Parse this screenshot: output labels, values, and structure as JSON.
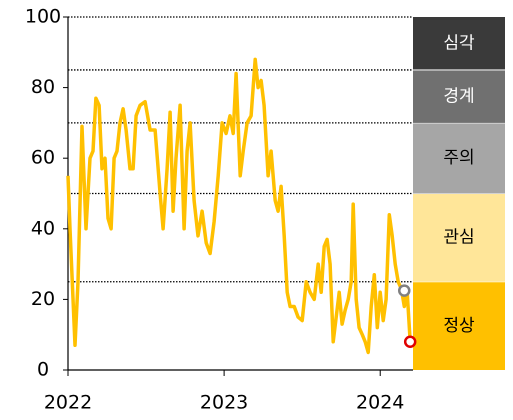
{
  "chart_data": {
    "type": "line",
    "x": [
      2022.0,
      2022.013,
      2022.045,
      2022.064,
      2022.09,
      2022.115,
      2022.141,
      2022.16,
      2022.179,
      2022.199,
      2022.218,
      2022.237,
      2022.256,
      2022.276,
      2022.295,
      2022.314,
      2022.333,
      2022.353,
      2022.372,
      2022.397,
      2022.417,
      2022.436,
      2022.462,
      2022.494,
      2022.526,
      2022.558,
      2022.59,
      2022.609,
      2022.635,
      2022.654,
      2022.673,
      2022.692,
      2022.718,
      2022.744,
      2022.763,
      2022.782,
      2022.808,
      2022.833,
      2022.859,
      2022.885,
      2022.91,
      2022.936,
      2022.962,
      2022.987,
      2023.013,
      2023.038,
      2023.058,
      2023.077,
      2023.103,
      2023.122,
      2023.147,
      2023.173,
      2023.199,
      2023.218,
      2023.237,
      2023.256,
      2023.282,
      2023.301,
      2023.327,
      2023.346,
      2023.365,
      2023.385,
      2023.404,
      2023.423,
      2023.449,
      2023.474,
      2023.5,
      2023.526,
      2023.551,
      2023.577,
      2023.603,
      2023.622,
      2023.641,
      2023.66,
      2023.679,
      2023.699,
      2023.718,
      2023.737,
      2023.756,
      2023.776,
      2023.795,
      2023.814,
      2023.827,
      2023.846,
      2023.865,
      2023.885,
      2023.904,
      2023.923,
      2023.942,
      2023.962,
      2023.981,
      2024.0,
      2024.019,
      2024.038,
      2024.058,
      2024.077,
      2024.096,
      2024.115,
      2024.135,
      2024.154,
      2024.173,
      2024.192
    ],
    "series": [
      {
        "color": "#ffc000",
        "values": [
          55,
          40,
          7,
          25,
          69,
          40,
          60,
          62,
          77,
          75,
          57,
          60,
          43,
          40,
          60,
          62,
          70,
          74,
          68,
          57,
          57,
          72,
          75,
          76,
          68,
          68,
          50,
          40,
          57,
          73,
          45,
          60,
          75,
          40,
          62,
          70,
          48,
          38,
          45,
          36,
          33,
          42,
          55,
          70,
          67,
          72,
          67,
          84,
          55,
          62,
          70,
          72,
          88,
          80,
          82,
          75,
          55,
          62,
          48,
          45,
          52,
          38,
          22,
          18,
          18,
          15,
          14,
          25,
          22,
          20,
          30,
          22,
          35,
          37,
          30,
          8,
          15,
          22,
          13,
          17,
          20,
          25,
          47,
          20,
          12,
          10,
          8,
          5,
          18,
          27,
          12,
          22,
          14,
          20,
          44,
          38,
          30,
          25,
          23,
          18,
          22,
          8
        ]
      }
    ],
    "points": [
      {
        "x": 2024.154,
        "y": 22.5,
        "color": "#808080"
      },
      {
        "x": 2024.192,
        "y": 8,
        "color": "#e00000"
      }
    ],
    "bands": [
      {
        "label": "심각",
        "from": 85,
        "to": 100,
        "color": "#3a3a3a",
        "text_color": "#ffffff"
      },
      {
        "label": "경계",
        "from": 70,
        "to": 85,
        "color": "#707070",
        "text_color": "#ffffff"
      },
      {
        "label": "주의",
        "from": 50,
        "to": 70,
        "color": "#a6a6a6",
        "text_color": "#000000"
      },
      {
        "label": "관심",
        "from": 25,
        "to": 50,
        "color": "#ffe699",
        "text_color": "#000000"
      },
      {
        "label": "정상",
        "from": 0,
        "to": 25,
        "color": "#ffc000",
        "text_color": "#000000"
      }
    ],
    "xlim": [
      2022,
      2024.21
    ],
    "xticks": [
      2022,
      2023,
      2024
    ],
    "ylim": [
      0,
      100
    ],
    "yticks": [
      0,
      20,
      40,
      60,
      80,
      100
    ]
  }
}
